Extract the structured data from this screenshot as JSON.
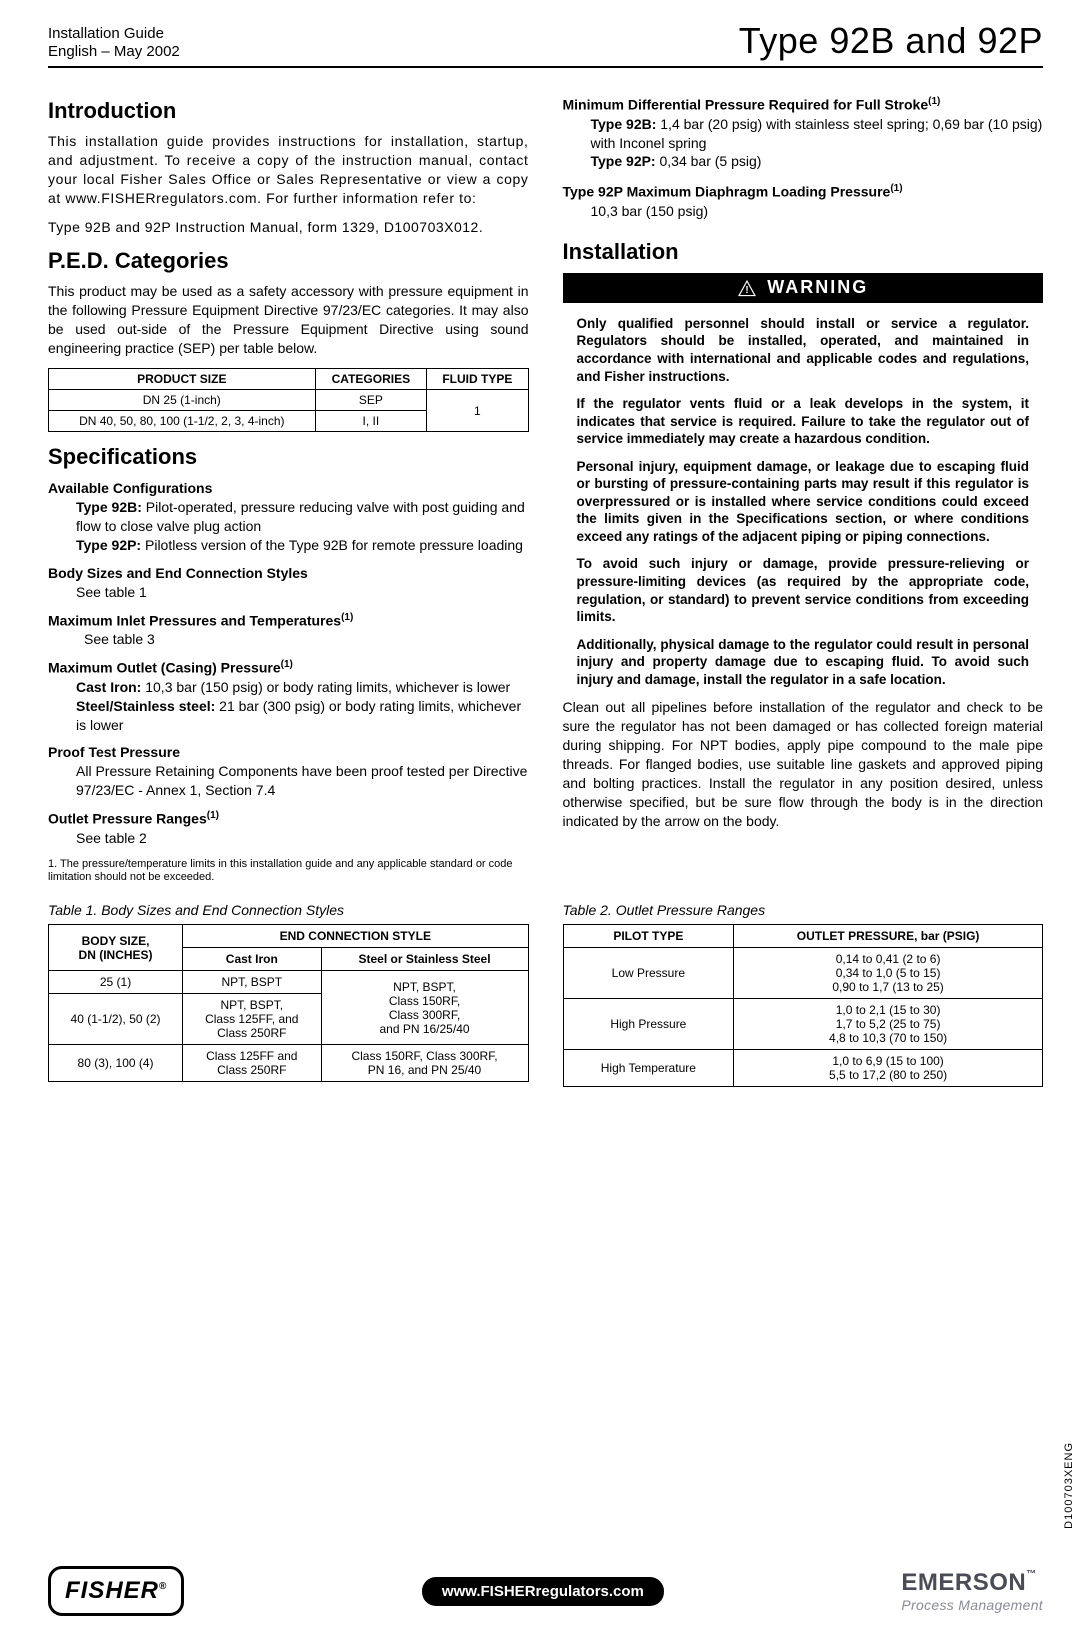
{
  "doc": {
    "header_left_line1": "Installation Guide",
    "header_left_line2": "English – May 2002",
    "header_right": "Type 92B and 92P",
    "side_code": "D100703XENG"
  },
  "left": {
    "intro_h": "Introduction",
    "intro_p1": "This installation guide provides instructions for installation, startup, and adjustment.  To receive a copy of the instruction manual, contact your local Fisher Sales Office or Sales Representative or view a copy at www.FISHERregulators.com.  For further information refer to:",
    "intro_p2": "Type 92B and 92P Instruction Manual, form 1329, D100703X012.",
    "ped_h": "P.E.D. Categories",
    "ped_p": "This product may be used as a safety accessory with pressure equipment in the following Pressure Equipment Directive 97/23/EC categories. It may also be used out-side of the Pressure Equipment Directive using sound engineering practice (SEP) per table below.",
    "ped_table": {
      "headers": [
        "PRODUCT SIZE",
        "CATEGORIES",
        "FLUID TYPE"
      ],
      "rows": [
        [
          "DN 25 (1-inch)",
          "SEP",
          "1"
        ],
        [
          "DN 40, 50, 80, 100 (1-1/2, 2, 3, 4-inch)",
          "I, II",
          ""
        ]
      ],
      "fluid_rowspan": 2
    },
    "spec_h": "Specifications",
    "spec_items": [
      {
        "head": "Available Configurations",
        "body_html": "<b>Type 92B:</b>  Pilot-operated, pressure reducing valve with post guiding and flow to close valve plug action<br><b>Type 92P:</b>  Pilotless version of the Type 92B for remote pressure loading",
        "ind": true
      },
      {
        "head": "Body Sizes and End Connection Styles",
        "body_html": "See table 1",
        "ind": true
      },
      {
        "head": "Maximum Inlet Pressures and Temperatures<sup>(1)</sup>",
        "body_html": "See table 3",
        "ind": true,
        "extra_indent": true
      },
      {
        "head": "Maximum Outlet (Casing) Pressure<sup>(1)</sup>",
        "body_html": "<b>Cast Iron:</b>  10,3 bar (150 psig) or body rating limits, whichever is lower<br><b>Steel/Stainless steel:</b>  21 bar (300 psig) or body rating limits, whichever is lower",
        "ind": true
      },
      {
        "head": "Proof Test Pressure",
        "body_html": "All Pressure Retaining Components have been proof tested per Directive 97/23/EC - Annex 1, Section 7.4",
        "ind": true
      },
      {
        "head": "Outlet Pressure Ranges<sup>(1)</sup>",
        "body_html": "See table 2",
        "ind": true
      }
    ],
    "footnote": "1.  The pressure/temperature limits in this installation guide and any applicable standard or code limitation should not be exceeded."
  },
  "right": {
    "mdp_head": "Minimum Differential Pressure Required for Full Stroke",
    "mdp_sup": "(1)",
    "mdp_body": "<b>Type 92B:</b>  1,4 bar (20 psig) with stainless steel spring; 0,69 bar (10 psig) with Inconel spring<br><b>Type 92P:</b>  0,34 bar (5 psig)",
    "mdl_head": "Type 92P Maximum Diaphragm Loading Pressure",
    "mdl_sup": "(1)",
    "mdl_body": "10,3 bar (150 psig)",
    "install_h": "Installation",
    "warning_label": "WARNING",
    "warning_paras": [
      "Only qualified personnel should install or service a regulator.  Regulators should be installed, operated, and maintained in accordance with international and applicable codes and regulations, and Fisher instructions.",
      "If the regulator vents fluid or a leak develops in the system, it indicates that service is required.  Failure to take the regulator out of service immediately may create a hazardous condition.",
      "Personal injury, equipment damage, or leakage due to escaping fluid or bursting of pressure-containing parts may result if this regulator is overpressured or is installed where service conditions could exceed the limits given in the Specifications section, or where conditions exceed any ratings of the adjacent piping or piping connections.",
      "To avoid such injury or damage, provide pressure-relieving or pressure-limiting devices (as required by the appropriate code, regulation, or standard) to prevent service conditions from exceeding limits.",
      "Additionally, physical damage to the regulator could result in personal injury and property damage due to escaping fluid.  To avoid such injury and damage, install the regulator in a safe location."
    ],
    "clean_para": "Clean out all pipelines before installation of the regulator and check to be sure the regulator has not been damaged or has collected foreign material during shipping.  For NPT bodies, apply pipe compound to the male pipe threads.  For flanged bodies, use suitable line gaskets and approved piping and bolting practices.  Install the regulator in any position desired, unless otherwise specified, but be sure flow through the body is in the direction indicated by the arrow on the body."
  },
  "table1": {
    "caption": "Table 1.  Body Sizes and End Connection Styles",
    "headers": {
      "body_size": "BODY SIZE,\nDN (INCHES)",
      "end_conn": "END CONNECTION STYLE",
      "cast_iron": "Cast Iron",
      "steel": "Steel or Stainless Steel"
    },
    "rows": [
      {
        "size": "25 (1)",
        "cast": "NPT, BSPT",
        "steel": "NPT, BSPT,\nClass 150RF,\nClass 300RF,\nand PN 16/25/40",
        "steel_rowspan": 2
      },
      {
        "size": "40 (1-1/2), 50 (2)",
        "cast": "NPT, BSPT,\nClass 125FF, and\nClass 250RF"
      },
      {
        "size": "80 (3), 100 (4)",
        "cast": "Class 125FF and\nClass 250RF",
        "steel": "Class 150RF, Class 300RF,\nPN 16, and PN 25/40"
      }
    ]
  },
  "table2": {
    "caption": "Table 2.  Outlet Pressure Ranges",
    "headers": {
      "pilot": "PILOT TYPE",
      "out": "OUTLET PRESSURE, bar (PSIG)"
    },
    "rows": [
      {
        "pilot": "Low Pressure",
        "out": "0,14 to 0,41  (2 to 6)\n0,34 to 1,0  (5 to 15)\n0,90 to 1,7  (13 to 25)"
      },
      {
        "pilot": "High Pressure",
        "out": "1,0 to 2,1  (15 to 30)\n1,7 to 5,2  (25 to 75)\n4,8 to 10,3  (70 to 150)"
      },
      {
        "pilot": "High Temperature",
        "out": "1,0 to 6,9  (15 to 100)\n5,5 to 17,2  (80 to 250)"
      }
    ]
  },
  "footer": {
    "fisher": "FISHER",
    "reg": "®",
    "url": "www.FISHERregulators.com",
    "emerson": "EMERSON",
    "tm": "™",
    "sub": "Process Management"
  }
}
